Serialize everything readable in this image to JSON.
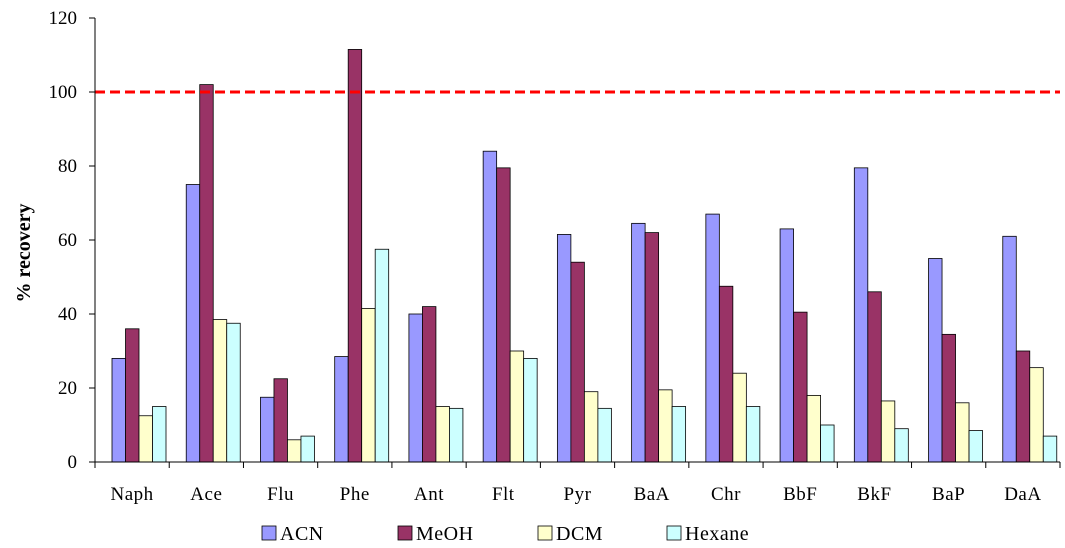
{
  "chart_data": {
    "type": "bar",
    "ylabel": "% recovery",
    "xlabel": "",
    "ylim": [
      0,
      120
    ],
    "yticks": [
      "0",
      "20",
      "40",
      "60",
      "80",
      "100",
      "120"
    ],
    "categories": [
      "Naph",
      "Ace",
      "Flu",
      "Phe",
      "Ant",
      "Flt",
      "Pyr",
      "BaA",
      "Chr",
      "BbF",
      "BkF",
      "BaP",
      "DaA"
    ],
    "series": [
      {
        "name": "ACN",
        "color": "#9999ff",
        "values": [
          28,
          75,
          17.5,
          28.5,
          40,
          84,
          61.5,
          64.5,
          67,
          63,
          79.5,
          55,
          61
        ]
      },
      {
        "name": "MeOH",
        "color": "#993366",
        "values": [
          36,
          102,
          22.5,
          111.5,
          42,
          79.5,
          54,
          62,
          47.5,
          40.5,
          46,
          34.5,
          30
        ]
      },
      {
        "name": "DCM",
        "color": "#ffffcc",
        "values": [
          12.5,
          38.5,
          6,
          41.5,
          15,
          30,
          19,
          19.5,
          24,
          18,
          16.5,
          16,
          25.5
        ]
      },
      {
        "name": "Hexane",
        "color": "#ccffff",
        "values": [
          15,
          37.5,
          7,
          57.5,
          14.5,
          28,
          14.5,
          15,
          15,
          10,
          9,
          8.5,
          7
        ]
      }
    ],
    "reference_line": {
      "y": 100,
      "color": "#ff0000",
      "style": "dashed"
    },
    "legend_position": "bottom",
    "grid": false
  }
}
